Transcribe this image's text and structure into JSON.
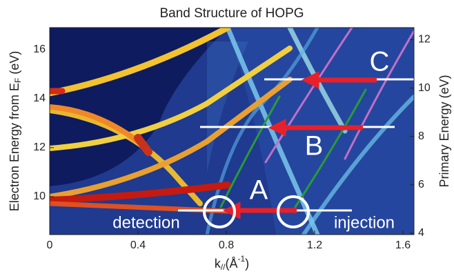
{
  "chart_data": {
    "type": "heatmap",
    "title": "Band Structure of HOPG",
    "x_label": {
      "symbol": "k",
      "subscript": "//",
      "unit_open": "(Å",
      "unit_sup": "-1",
      "unit_close": ")"
    },
    "y_label": {
      "main": "Electron Energy from E",
      "subscript": "F",
      "unit": " (eV)"
    },
    "y2_label": "Primary Energy (eV)",
    "xlim": [
      0,
      1.65
    ],
    "xticks": [
      0,
      0.4,
      0.8,
      1.2,
      1.6
    ],
    "ylim": [
      8.45,
      16.9
    ],
    "yticks": [
      10,
      12,
      14,
      16
    ],
    "y2lim": [
      3.94,
      12.5
    ],
    "y2ticks": [
      4,
      6,
      8,
      10,
      12
    ],
    "annotations": {
      "a": "A",
      "b": "B",
      "c": "C",
      "detection": "detection",
      "injection": "injection"
    }
  }
}
